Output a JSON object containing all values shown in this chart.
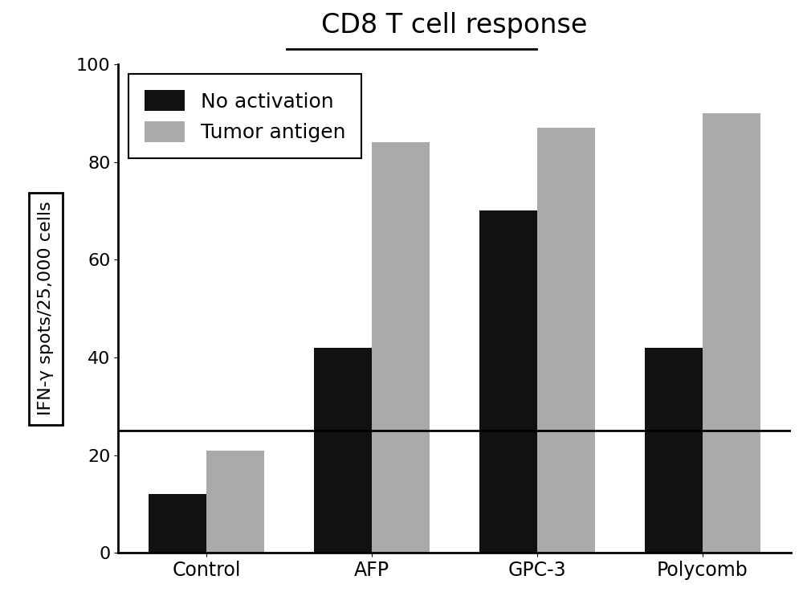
{
  "categories": [
    "Control",
    "AFP",
    "GPC-3",
    "Polycomb"
  ],
  "no_activation": [
    12,
    42,
    70,
    42
  ],
  "tumor_antigen": [
    21,
    84,
    87,
    90
  ],
  "bar_color_black": "#111111",
  "bar_color_gray": "#aaaaaa",
  "hline_y": 25,
  "ylim": [
    0,
    100
  ],
  "yticks": [
    0,
    20,
    40,
    60,
    80,
    100
  ],
  "ytick_labels": [
    "0",
    "20",
    "40",
    "60",
    "80",
    "100"
  ],
  "ylabel": "IFN-γ spots/25,000 cells",
  "title": "CD8 T cell response",
  "legend_no_activation": "No activation",
  "legend_tumor_antigen": "Tumor antigen",
  "bar_width": 0.35,
  "background_color": "#ffffff",
  "title_fontsize": 24,
  "axis_fontsize": 16,
  "tick_fontsize": 16,
  "legend_fontsize": 18
}
